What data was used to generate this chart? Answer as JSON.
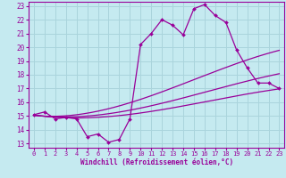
{
  "xlabel": "Windchill (Refroidissement éolien,°C)",
  "background_color": "#c5eaf0",
  "line_color": "#990099",
  "grid_color": "#aad4dc",
  "xlim": [
    -0.5,
    23.5
  ],
  "ylim": [
    12.7,
    23.3
  ],
  "yticks": [
    13,
    14,
    15,
    16,
    17,
    18,
    19,
    20,
    21,
    22,
    23
  ],
  "xticks": [
    0,
    1,
    2,
    3,
    4,
    5,
    6,
    7,
    8,
    9,
    10,
    11,
    12,
    13,
    14,
    15,
    16,
    17,
    18,
    19,
    20,
    21,
    22,
    23
  ],
  "main_data_x": [
    0,
    1,
    2,
    3,
    4,
    5,
    6,
    7,
    8,
    9,
    10,
    11,
    12,
    13,
    14,
    15,
    16,
    17,
    18,
    19,
    20,
    21,
    22,
    23
  ],
  "main_data_y": [
    15.1,
    15.3,
    14.8,
    14.9,
    14.8,
    13.5,
    13.7,
    13.1,
    13.3,
    14.8,
    20.2,
    21.0,
    22.0,
    21.6,
    20.9,
    22.8,
    23.1,
    22.3,
    21.8,
    19.8,
    18.5,
    17.4,
    17.4,
    17.0
  ],
  "curve1_y_end": 19.8,
  "curve2_y_end": 18.1,
  "curve3_y_end": 17.0
}
